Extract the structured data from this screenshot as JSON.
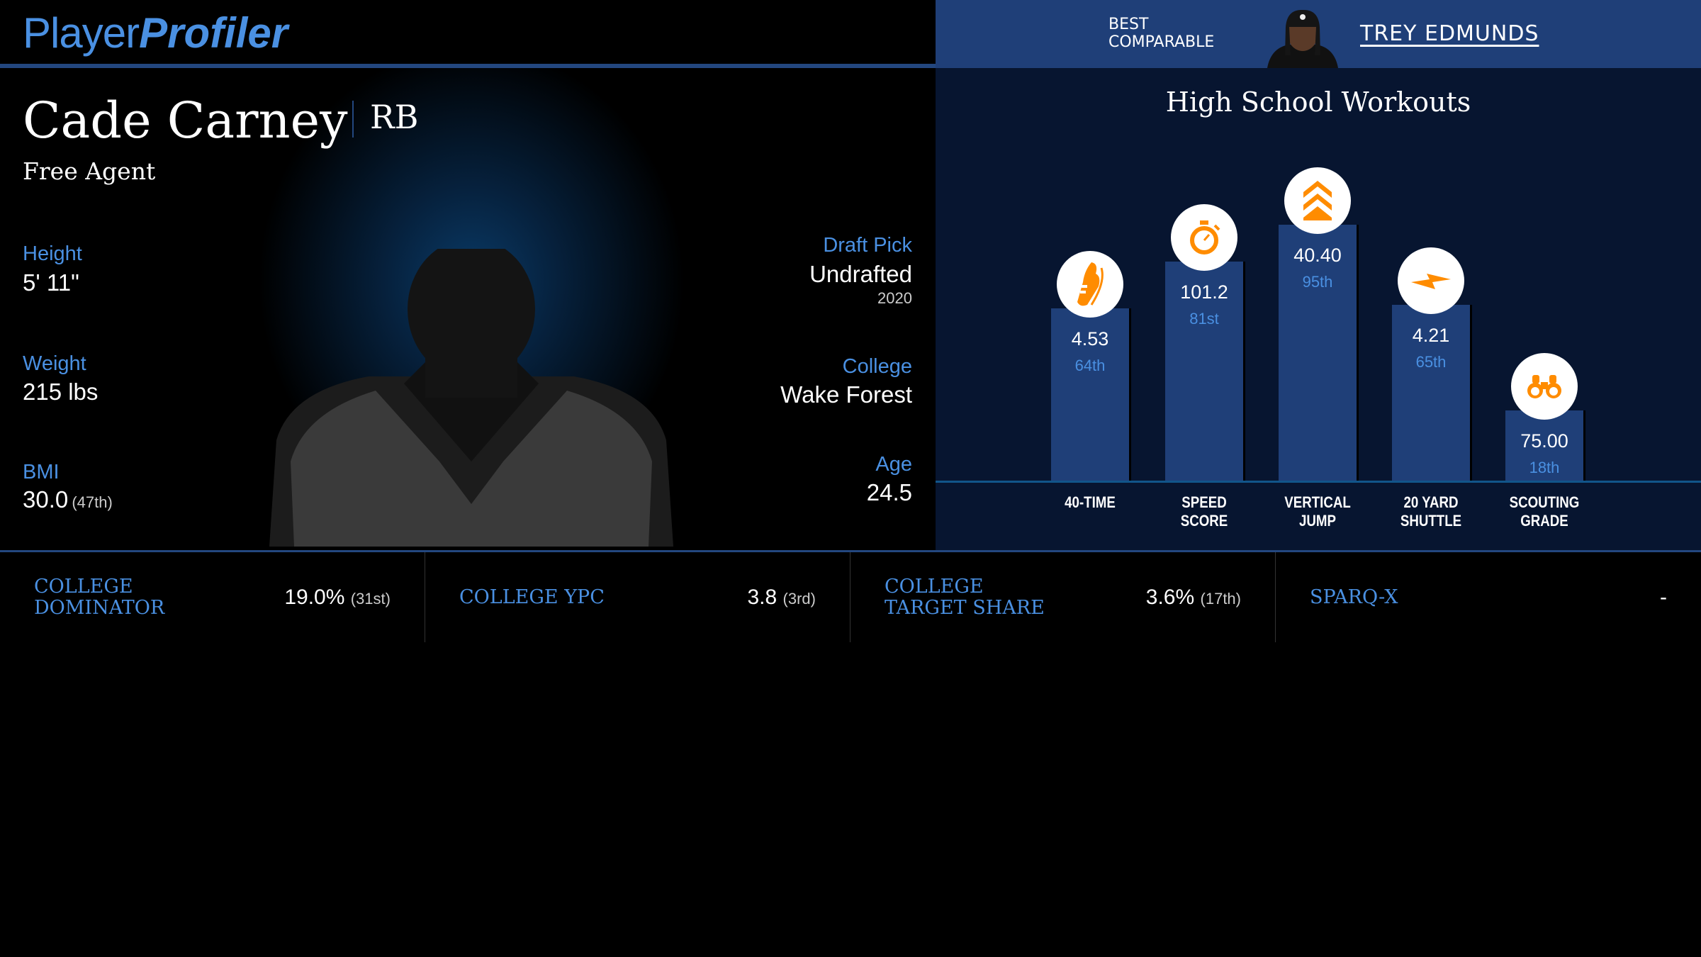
{
  "logo": {
    "part1": "Player",
    "part2": "Profiler"
  },
  "comparable": {
    "label_line1": "BEST",
    "label_line2": "COMPARABLE",
    "name": "TREY EDMUNDS"
  },
  "player": {
    "name": "Cade Carney",
    "position": "RB",
    "team": "Free Agent",
    "height_label": "Height",
    "height": "5' 11\"",
    "weight_label": "Weight",
    "weight": "215 lbs",
    "bmi_label": "BMI",
    "bmi": "30.0",
    "bmi_rank": "(47th)",
    "draft_label": "Draft Pick",
    "draft": "Undrafted",
    "draft_year": "2020",
    "college_label": "College",
    "college": "Wake Forest",
    "age_label": "Age",
    "age": "24.5"
  },
  "workouts": {
    "title": "High School Workouts",
    "items": [
      {
        "icon": "shoe-icon",
        "value": "4.53",
        "pct": "64th",
        "pct_num": 64,
        "label1": "40-TIME",
        "label2": ""
      },
      {
        "icon": "stopwatch-icon",
        "value": "101.2",
        "pct": "81st",
        "pct_num": 81,
        "label1": "SPEED",
        "label2": "SCORE"
      },
      {
        "icon": "chevrons-up-icon",
        "value": "40.40",
        "pct": "95th",
        "pct_num": 95,
        "label1": "VERTICAL",
        "label2": "JUMP"
      },
      {
        "icon": "lightning-icon",
        "value": "4.21",
        "pct": "65th",
        "pct_num": 65,
        "label1": "20 YARD",
        "label2": "SHUTTLE"
      },
      {
        "icon": "binoculars-icon",
        "value": "75.00",
        "pct": "18th",
        "pct_num": 18,
        "label1": "SCOUTING",
        "label2": "GRADE"
      }
    ]
  },
  "stats": [
    {
      "label": "COLLEGE DOMINATOR",
      "value": "19.0%",
      "rank": "(31st)"
    },
    {
      "label": "COLLEGE YPC",
      "value": "3.8",
      "rank": "(3rd)"
    },
    {
      "label": "COLLEGE TARGET SHARE",
      "value": "3.6%",
      "rank": "(17th)"
    },
    {
      "label": "SPARQ-X",
      "value": "-",
      "rank": ""
    }
  ],
  "colors": {
    "accent": "#4a90e2",
    "bar": "#1f3f78",
    "icon": "#ff8c00",
    "panel": "#071530"
  }
}
